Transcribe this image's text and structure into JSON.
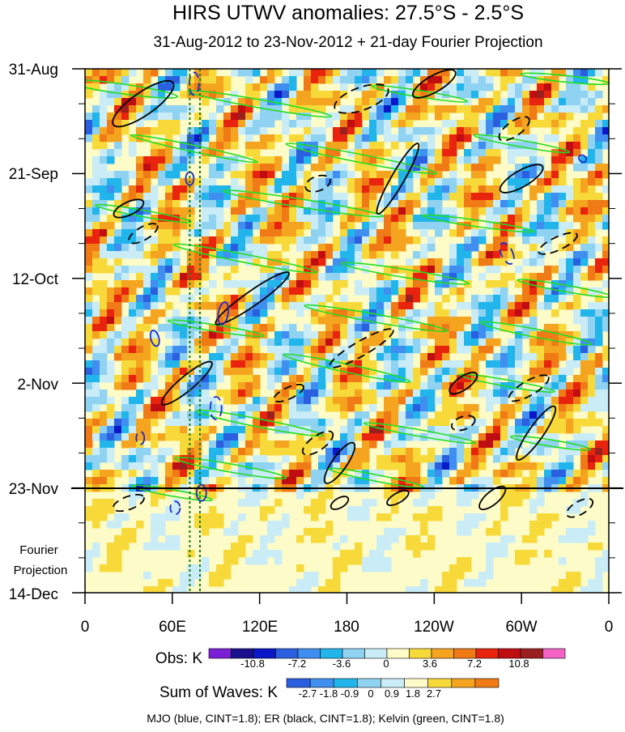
{
  "chart_data": {
    "type": "heatmap",
    "title": "HIRS UTWV anomalies: 27.5°S - 2.5°S",
    "subtitle": "31-Aug-2012 to 23-Nov-2012 + 21-day Fourier Projection",
    "x_ticks": [
      "0",
      "60E",
      "120E",
      "180",
      "120W",
      "60W",
      "0"
    ],
    "x_values": [
      0,
      60,
      120,
      180,
      240,
      300,
      360
    ],
    "xlim": [
      0,
      360
    ],
    "y_ticks": [
      "31-Aug",
      "21-Sep",
      "12-Oct",
      "2-Nov",
      "23-Nov",
      "14-Dec"
    ],
    "y_days": [
      0,
      21,
      42,
      63,
      84,
      105
    ],
    "ylim_days": [
      0,
      105
    ],
    "projection_start_day": 84,
    "projection_label_line1": "Fourier",
    "projection_label_line2": "Projection",
    "dotted_lines_lon": [
      72,
      79
    ],
    "obs_colorbar": {
      "label": "Obs: K",
      "ticks": [
        "-10.8",
        "-7.2",
        "-3.6",
        "0",
        "3.6",
        "7.2",
        "10.8"
      ],
      "colors": [
        "#7a1fd6",
        "#1a0f8c",
        "#0a18c8",
        "#2a5fe0",
        "#3f8ef0",
        "#21b5ec",
        "#8fd2f2",
        "#c9ecf7",
        "#fdfbc8",
        "#f8d93a",
        "#f5a41f",
        "#f07a16",
        "#e8240e",
        "#c00d12",
        "#9a2020",
        "#f462c8"
      ]
    },
    "waves_colorbar": {
      "label": "Sum of Waves: K",
      "ticks": [
        "-2.7",
        "-1.8",
        "-0.9",
        "0",
        "0.9",
        "1.8",
        "2.7"
      ],
      "colors": [
        "#2a5fe0",
        "#3f8ef0",
        "#21b5ec",
        "#8fd2f2",
        "#c9ecf7",
        "#fdfbc8",
        "#f8d93a",
        "#f5a41f",
        "#f07a16"
      ]
    },
    "legend_text": "MJO (blue, CINT=1.8); ER (black, CINT=1.8); Kelvin (green, CINT=1.8)",
    "series": [
      {
        "name": "MJO",
        "color": "#1a2ad0",
        "cint": 1.8
      },
      {
        "name": "ER",
        "color": "#000000",
        "cint": 1.8
      },
      {
        "name": "Kelvin",
        "color": "#22dd22",
        "cint": 1.8
      }
    ]
  }
}
